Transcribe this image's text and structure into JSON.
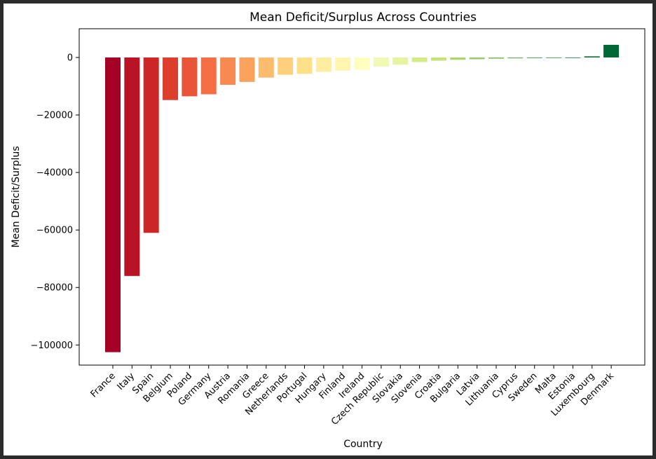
{
  "chart_data": {
    "type": "bar",
    "title": "Mean Deficit/Surplus Across Countries",
    "xlabel": "Country",
    "ylabel": "Mean Deficit/Surplus",
    "ylim": [
      -107000,
      10000
    ],
    "yticks": [
      0,
      -20000,
      -40000,
      -60000,
      -80000,
      -100000
    ],
    "ytick_labels": [
      "0",
      "−20000",
      "−40000",
      "−60000",
      "−80000",
      "−100000"
    ],
    "grid": false,
    "legend": "none",
    "colormap": "RdYlGn",
    "categories": [
      "France",
      "Italy",
      "Spain",
      "Belgium",
      "Poland",
      "Germany",
      "Austria",
      "Romania",
      "Greece",
      "Netherlands",
      "Portugal",
      "Hungary",
      "Finland",
      "Ireland",
      "Czech Republic",
      "Slovakia",
      "Slovenia",
      "Croatia",
      "Bulgaria",
      "Latvia",
      "Lithuania",
      "Cyprus",
      "Sweden",
      "Malta",
      "Estonia",
      "Luxembourg",
      "Denmark"
    ],
    "values": [
      -102500,
      -76000,
      -61000,
      -14800,
      -13500,
      -12800,
      -9500,
      -8500,
      -7000,
      -6000,
      -5700,
      -5000,
      -4600,
      -4300,
      -3200,
      -2500,
      -1600,
      -1100,
      -800,
      -600,
      -400,
      -300,
      -250,
      -200,
      -150,
      400,
      4400
    ],
    "colors": [
      "#a50026",
      "#b91326",
      "#cc2627",
      "#dd3d2d",
      "#e95538",
      "#f46d43",
      "#f88950",
      "#fba35c",
      "#fdbc6d",
      "#fed07e",
      "#fee08b",
      "#ffeda0",
      "#fff5ae",
      "#fffebe",
      "#f1f9b4",
      "#e5f49f",
      "#d3ec89",
      "#c2e478",
      "#acd46a",
      "#96cb66",
      "#7dbe5f",
      "#64b359",
      "#4aa455",
      "#2f9348",
      "#16803d",
      "#0a7030",
      "#006837"
    ]
  }
}
